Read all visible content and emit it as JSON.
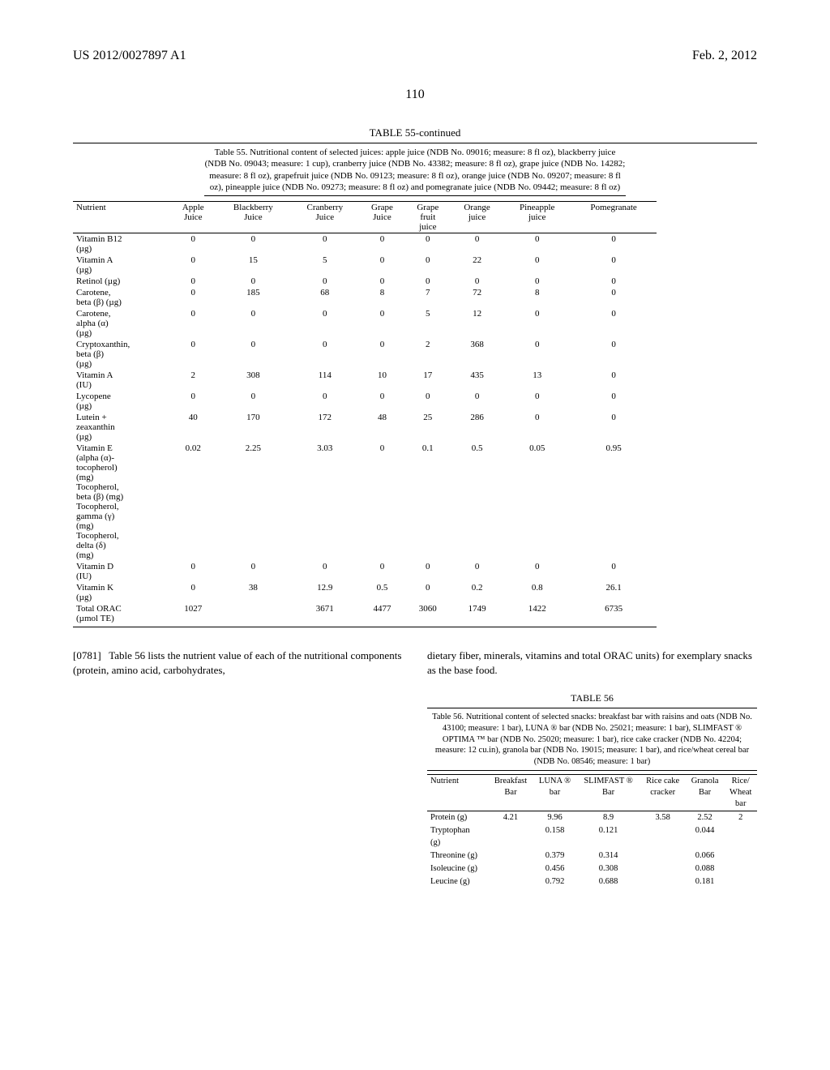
{
  "header": {
    "pub_number": "US 2012/0027897 A1",
    "pub_date": "Feb. 2, 2012",
    "page_number": "110"
  },
  "table55": {
    "title": "TABLE 55-continued",
    "caption": "Table 55. Nutritional content of selected juices: apple juice (NDB No. 09016; measure: 8 fl oz), blackberry juice (NDB No. 09043; measure: 1 cup), cranberry juice (NDB No. 43382; measure: 8 fl oz), grape juice (NDB No. 14282; measure: 8 fl oz), grapefruit juice (NDB No. 09123; measure: 8 fl oz), orange juice (NDB No. 09207; measure: 8 fl oz), pineapple juice (NDB No. 09273; measure: 8 fl oz) and pomegranate juice (NDB No. 09442; measure: 8 fl oz)",
    "headers": [
      "Nutrient",
      "Apple\nJuice",
      "Blackberry\nJuice",
      "Cranberry\nJuice",
      "Grape\nJuice",
      "Grape\nfruit\njuice",
      "Orange\njuice",
      "Pineapple\njuice",
      "Pomegranate"
    ],
    "rows": [
      {
        "label": "Vitamin B12\n(µg)",
        "vals": [
          "0",
          "0",
          "0",
          "0",
          "0",
          "0",
          "0",
          "0"
        ]
      },
      {
        "label": "Vitamin A\n(µg)",
        "vals": [
          "0",
          "15",
          "5",
          "0",
          "0",
          "22",
          "0",
          "0"
        ]
      },
      {
        "label": "Retinol (µg)",
        "vals": [
          "0",
          "0",
          "0",
          "0",
          "0",
          "0",
          "0",
          "0"
        ]
      },
      {
        "label": "Carotene,\nbeta (β) (µg)",
        "vals": [
          "0",
          "185",
          "68",
          "8",
          "7",
          "72",
          "8",
          "0"
        ]
      },
      {
        "label": "Carotene,\nalpha (α)\n(µg)",
        "vals": [
          "0",
          "0",
          "0",
          "0",
          "5",
          "12",
          "0",
          "0"
        ]
      },
      {
        "label": "Cryptoxanthin,\nbeta (β)\n(µg)",
        "vals": [
          "0",
          "0",
          "0",
          "0",
          "2",
          "368",
          "0",
          "0"
        ]
      },
      {
        "label": "Vitamin A\n(IU)",
        "vals": [
          "2",
          "308",
          "114",
          "10",
          "17",
          "435",
          "13",
          "0"
        ]
      },
      {
        "label": "Lycopene\n(µg)",
        "vals": [
          "0",
          "0",
          "0",
          "0",
          "0",
          "0",
          "0",
          "0"
        ]
      },
      {
        "label": "Lutein +\nzeaxanthin\n(µg)",
        "vals": [
          "40",
          "170",
          "172",
          "48",
          "25",
          "286",
          "0",
          "0"
        ]
      },
      {
        "label": "Vitamin E\n(alpha (α)-\ntocopherol)\n(mg)\nTocopherol,\nbeta (β) (mg)\nTocopherol,\ngamma (γ)\n(mg)\nTocopherol,\ndelta (δ)\n(mg)",
        "vals": [
          "0.02",
          "2.25",
          "3.03",
          "0",
          "0.1",
          "0.5",
          "0.05",
          "0.95"
        ]
      },
      {
        "label": "Vitamin D\n(IU)",
        "vals": [
          "0",
          "0",
          "0",
          "0",
          "0",
          "0",
          "0",
          "0"
        ]
      },
      {
        "label": "Vitamin K\n(µg)",
        "vals": [
          "0",
          "38",
          "12.9",
          "0.5",
          "0",
          "0.2",
          "0.8",
          "26.1"
        ]
      },
      {
        "label": "Total ORAC\n(µmol TE)",
        "vals": [
          "1027",
          "",
          "3671",
          "4477",
          "3060",
          "1749",
          "1422",
          "6735"
        ]
      }
    ]
  },
  "para": {
    "num": "[0781]",
    "left": "Table 56 lists the nutrient value of each of the nutritional components (protein, amino acid, carbohydrates,",
    "right": "dietary fiber, minerals, vitamins and total ORAC units) for exemplary snacks as the base food."
  },
  "table56": {
    "title": "TABLE 56",
    "caption": "Table 56. Nutritional content of selected snacks: breakfast bar with raisins and oats (NDB No. 43100; measure: 1 bar), LUNA ® bar (NDB No. 25021; measure: 1 bar), SLIMFAST ® OPTIMA ™ bar (NDB No. 25020; measure: 1 bar), rice cake cracker (NDB No. 42204; measure: 12 cu.in), granola bar (NDB No. 19015; measure: 1 bar), and rice/wheat cereal bar (NDB No. 08546; measure: 1 bar)",
    "headers": [
      "Nutrient",
      "Breakfast\nBar",
      "LUNA ®\nbar",
      "SLIMFAST ®\nBar",
      "Rice cake\ncracker",
      "Granola\nBar",
      "Rice/\nWheat\nbar"
    ],
    "rows": [
      {
        "label": "Protein (g)",
        "vals": [
          "4.21",
          "9.96",
          "8.9",
          "3.58",
          "2.52",
          "2"
        ]
      },
      {
        "label": "Tryptophan\n(g)",
        "vals": [
          "",
          "0.158",
          "0.121",
          "",
          "0.044",
          ""
        ]
      },
      {
        "label": "Threonine (g)",
        "vals": [
          "",
          "0.379",
          "0.314",
          "",
          "0.066",
          ""
        ]
      },
      {
        "label": "Isoleucine (g)",
        "vals": [
          "",
          "0.456",
          "0.308",
          "",
          "0.088",
          ""
        ]
      },
      {
        "label": "Leucine (g)",
        "vals": [
          "",
          "0.792",
          "0.688",
          "",
          "0.181",
          ""
        ]
      }
    ]
  }
}
